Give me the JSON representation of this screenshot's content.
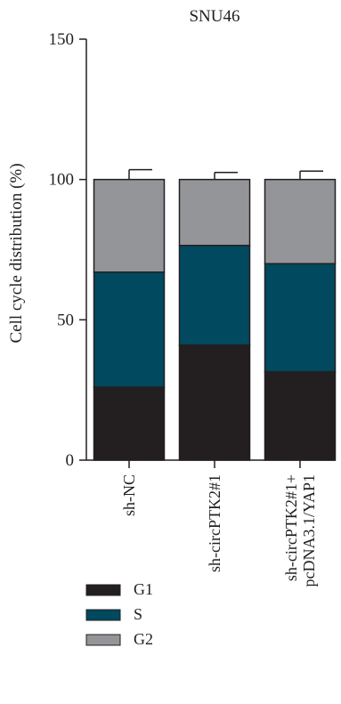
{
  "chart_data": {
    "type": "bar",
    "stacked": true,
    "title": "SNU46",
    "ylabel": "Cell cycle distribution (%)",
    "xlabel": "",
    "ylim": [
      0,
      150
    ],
    "yticks": [
      0,
      50,
      100,
      150
    ],
    "categories": [
      [
        "sh-NC"
      ],
      [
        "sh-circPTK2#1"
      ],
      [
        "sh-circPTK2#1+",
        "pcDNA3.1/YAP1"
      ]
    ],
    "series": [
      {
        "name": "G1",
        "color": "#231f20",
        "values": [
          26,
          41,
          31.5
        ],
        "errors": [
          3,
          4.5,
          3.5
        ]
      },
      {
        "name": "S",
        "color": "#00495f",
        "values": [
          41,
          35.5,
          38.5
        ],
        "errors": [
          4.5,
          4,
          3.5
        ]
      },
      {
        "name": "G2",
        "color": "#939598",
        "values": [
          33,
          23.5,
          30
        ],
        "errors": [
          3.5,
          2.5,
          3
        ]
      }
    ],
    "legend_position": "bottom-left",
    "grid": false
  }
}
